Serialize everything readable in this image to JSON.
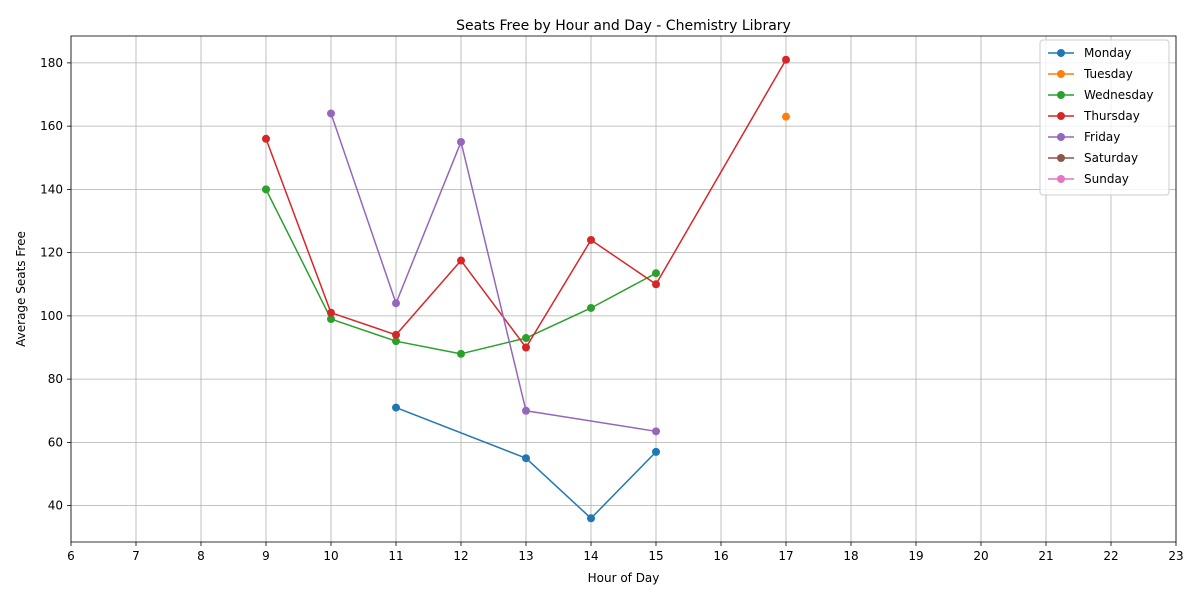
{
  "chart_data": {
    "type": "line",
    "title": "Seats Free by Hour and Day - Chemistry Library",
    "xlabel": "Hour of Day",
    "ylabel": "Average Seats Free",
    "xlim": [
      6,
      23
    ],
    "ylim": [
      28.5,
      188.5
    ],
    "xticks": [
      6,
      7,
      8,
      9,
      10,
      11,
      12,
      13,
      14,
      15,
      16,
      17,
      18,
      19,
      20,
      21,
      22,
      23
    ],
    "yticks": [
      40,
      60,
      80,
      100,
      120,
      140,
      160,
      180
    ],
    "grid": true,
    "legend_position": "top-right",
    "series": [
      {
        "name": "Monday",
        "color": "#1f77b4",
        "x": [
          11,
          13,
          14,
          15
        ],
        "y": [
          71,
          55,
          36,
          57
        ]
      },
      {
        "name": "Tuesday",
        "color": "#ff7f0e",
        "x": [
          17
        ],
        "y": [
          163
        ]
      },
      {
        "name": "Wednesday",
        "color": "#2ca02c",
        "x": [
          9,
          10,
          11,
          12,
          13,
          14,
          15
        ],
        "y": [
          140,
          99,
          92,
          88,
          93,
          102.5,
          113.5
        ]
      },
      {
        "name": "Thursday",
        "color": "#d62728",
        "x": [
          9,
          10,
          11,
          12,
          13,
          14,
          15,
          17
        ],
        "y": [
          156,
          101,
          94,
          117.5,
          90,
          124,
          110,
          181
        ]
      },
      {
        "name": "Friday",
        "color": "#9467bd",
        "x": [
          10,
          11,
          12,
          13,
          15
        ],
        "y": [
          164,
          104,
          155,
          70,
          63.5
        ]
      },
      {
        "name": "Saturday",
        "color": "#8c564b",
        "x": [],
        "y": []
      },
      {
        "name": "Sunday",
        "color": "#e377c2",
        "x": [],
        "y": []
      }
    ]
  }
}
